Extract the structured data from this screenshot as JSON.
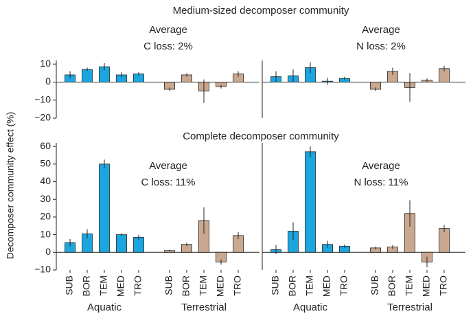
{
  "y_label": "Decomposer community effect (%)",
  "sections": [
    "Medium-sized decomposer community",
    "Complete decomposer community"
  ],
  "chart_data": [
    {
      "type": "bar",
      "annotation": [
        "Average",
        "C loss: 2%"
      ],
      "ylim": [
        -20,
        12
      ],
      "yticks": [
        10,
        0,
        {
          "value": -10,
          "label": "−10"
        },
        {
          "value": -20,
          "label": "−20"
        }
      ],
      "series": [
        {
          "color": "#1ca6df",
          "values": [
            4,
            7,
            8.5,
            4,
            4.5
          ],
          "errors": [
            2,
            1,
            2,
            1.5,
            1
          ]
        },
        {
          "color": "#c9a88f",
          "values": [
            -4,
            4,
            -5,
            -2.5,
            4.5
          ],
          "errors": [
            1,
            1,
            6.5,
            1,
            1.5
          ]
        }
      ]
    },
    {
      "type": "bar",
      "annotation": [
        "Average",
        "N loss: 2%"
      ],
      "ylim": [
        -20,
        12
      ],
      "series": [
        {
          "color": "#1ca6df",
          "values": [
            3,
            3.5,
            8,
            0.5,
            2
          ],
          "errors": [
            3,
            3.5,
            3,
            2,
            1
          ]
        },
        {
          "color": "#c9a88f",
          "values": [
            -4,
            6,
            -3,
            1,
            7.5
          ],
          "errors": [
            1,
            2,
            8,
            1,
            1.5
          ]
        }
      ]
    },
    {
      "type": "bar",
      "annotation": [
        "Average",
        "C loss: 11%"
      ],
      "ylim": [
        -10,
        62
      ],
      "yticks": [
        60,
        50,
        40,
        30,
        20,
        10,
        0,
        {
          "value": -10,
          "label": "−10"
        }
      ],
      "series": [
        {
          "name": "Aquatic",
          "color": "#1ca6df",
          "categories": [
            "SUB",
            "BOR",
            "TEM",
            "MED",
            "TRO"
          ],
          "values": [
            5.5,
            10.5,
            50,
            10,
            8.5
          ],
          "errors": [
            2,
            2.5,
            2.5,
            0.8,
            1.5
          ]
        },
        {
          "name": "Terrestrial",
          "color": "#c9a88f",
          "categories": [
            "SUB",
            "BOR",
            "TEM",
            "MED",
            "TRO"
          ],
          "values": [
            1,
            4.5,
            18,
            -5.5,
            9.5
          ],
          "errors": [
            0.5,
            1,
            7.5,
            1.5,
            2
          ]
        }
      ]
    },
    {
      "type": "bar",
      "annotation": [
        "Average",
        "N loss: 11%"
      ],
      "ylim": [
        -10,
        62
      ],
      "series": [
        {
          "name": "Aquatic",
          "color": "#1ca6df",
          "categories": [
            "SUB",
            "BOR",
            "TEM",
            "MED",
            "TRO"
          ],
          "values": [
            1.5,
            12,
            57,
            4.5,
            3.5
          ],
          "errors": [
            2.5,
            5,
            3,
            2,
            1
          ]
        },
        {
          "name": "Terrestrial",
          "color": "#c9a88f",
          "categories": [
            "SUB",
            "BOR",
            "TEM",
            "MED",
            "TRO"
          ],
          "values": [
            2.5,
            3,
            22,
            -5.5,
            13.5
          ],
          "errors": [
            0.8,
            1,
            7.5,
            3,
            2
          ]
        }
      ]
    }
  ]
}
